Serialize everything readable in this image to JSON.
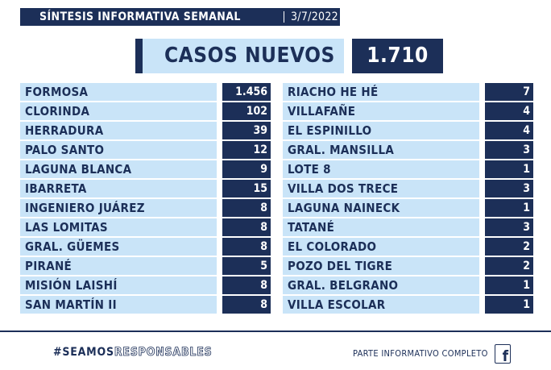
{
  "header": {
    "title": "SÍNTESIS  INFORMATIVA SEMANAL",
    "date": "3/7/2022"
  },
  "casos_nuevos": {
    "label": "CASOS NUEVOS",
    "value": "1.710"
  },
  "localities_left": [
    {
      "name": "FORMOSA",
      "value": "1.456"
    },
    {
      "name": "CLORINDA",
      "value": "102"
    },
    {
      "name": "HERRADURA",
      "value": "39"
    },
    {
      "name": "PALO SANTO",
      "value": "12"
    },
    {
      "name": "LAGUNA BLANCA",
      "value": "9"
    },
    {
      "name": "IBARRETA",
      "value": "15"
    },
    {
      "name": "INGENIERO JUÁREZ",
      "value": "8"
    },
    {
      "name": "LAS LOMITAS",
      "value": "8"
    },
    {
      "name": "GRAL. GÜEMES",
      "value": "8"
    },
    {
      "name": "PIRANÉ",
      "value": "5"
    },
    {
      "name": "MISIÓN LAISHÍ",
      "value": "8"
    },
    {
      "name": "SAN MARTÍN II",
      "value": "8"
    }
  ],
  "localities_right": [
    {
      "name": "RIACHO HE HÉ",
      "value": "7"
    },
    {
      "name": "VILLAFAÑE",
      "value": "4"
    },
    {
      "name": "EL ESPINILLO",
      "value": "4"
    },
    {
      "name": "GRAL. MANSILLA",
      "value": "3"
    },
    {
      "name": "LOTE 8",
      "value": "1"
    },
    {
      "name": "VILLA DOS TRECE",
      "value": "3"
    },
    {
      "name": "LAGUNA NAINECK",
      "value": "1"
    },
    {
      "name": "TATANÉ",
      "value": "3"
    },
    {
      "name": "EL COLORADO",
      "value": "2"
    },
    {
      "name": "POZO DEL TIGRE",
      "value": "2"
    },
    {
      "name": "GRAL. BELGRANO",
      "value": "1"
    },
    {
      "name": "VILLA ESCOLAR",
      "value": "1"
    }
  ],
  "footer": {
    "hashtag_bold": "#SEAMOS",
    "hashtag_light": "RESPONSABLES",
    "parte_text": "PARTE INFORMATIVO COMPLETO",
    "social_icon": "facebook-icon"
  },
  "colors": {
    "navy": "#1c2f58",
    "light_blue": "#c9e4f8"
  }
}
